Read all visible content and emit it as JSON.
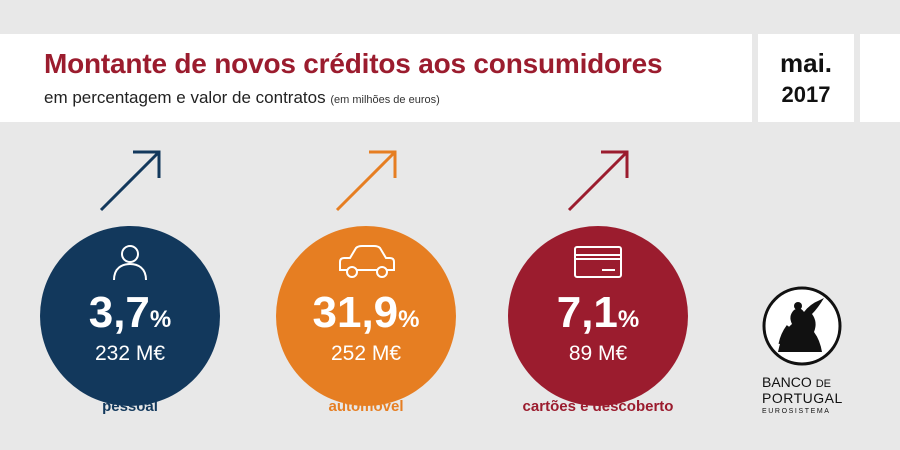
{
  "header": {
    "title": "Montante de novos créditos aos consumidores",
    "subtitle": "em percentagem e valor de contratos",
    "subtitle_note": "(em milhões de euros)"
  },
  "date": {
    "month": "mai.",
    "year": "2017"
  },
  "items": [
    {
      "percent": "3,7",
      "percent_sign": "%",
      "amount": "232 M€",
      "label": "pessoal",
      "color": "#12385c",
      "icon": "person-icon"
    },
    {
      "percent": "31,9",
      "percent_sign": "%",
      "amount": "252 M€",
      "label": "automóvel",
      "color": "#e67e22",
      "icon": "car-icon"
    },
    {
      "percent": "7,1",
      "percent_sign": "%",
      "amount": "89 M€",
      "label": "cartões e descoberto",
      "color": "#9b1c2e",
      "icon": "credit-card-icon"
    }
  ],
  "logo": {
    "line1_a": "BANCO ",
    "line1_b": "DE",
    "line2": "PORTUGAL",
    "line3": "EUROSISTEMA"
  }
}
